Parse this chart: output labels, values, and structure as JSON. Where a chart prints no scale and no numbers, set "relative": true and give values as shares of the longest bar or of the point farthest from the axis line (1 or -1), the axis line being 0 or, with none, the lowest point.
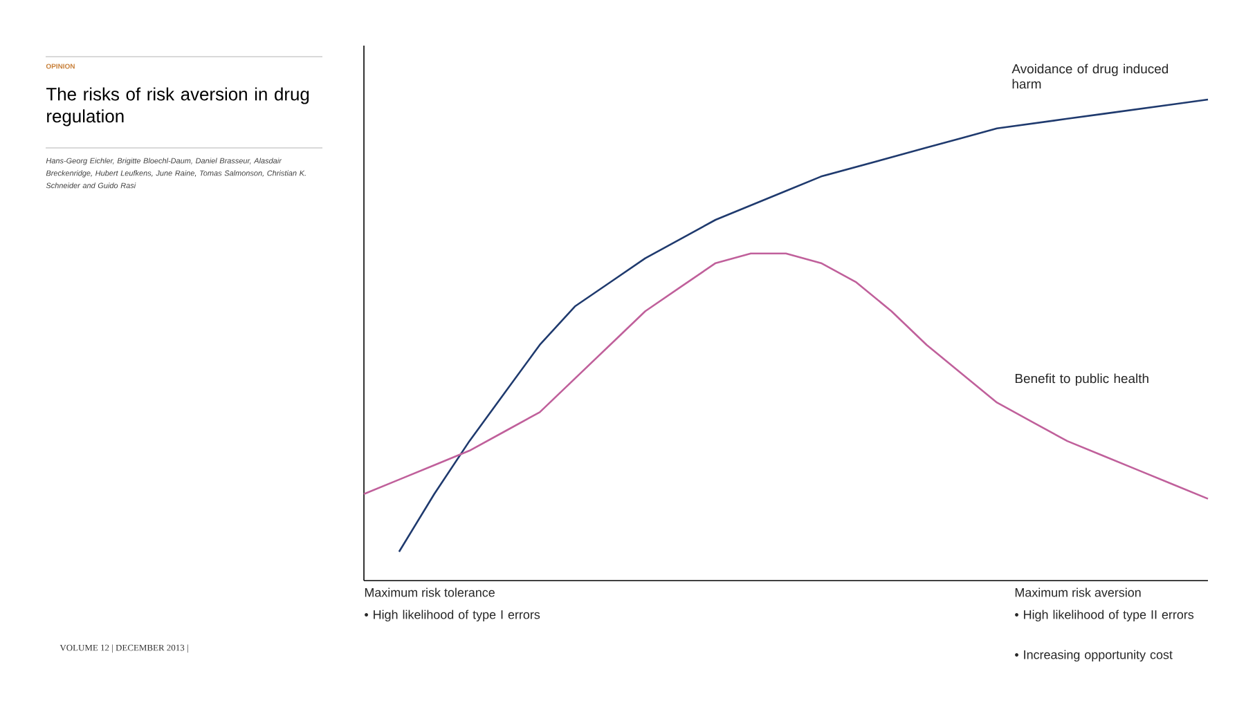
{
  "chart_data": {
    "type": "line",
    "relative": true,
    "title": "The risks of risk aversion in drug regulation",
    "subtitle": "Hans-Georg Eichler, Brigitte Bloechl-Daum, Daniel Brasseur, Alasdair Breckenridge, Hubert Leufkens, June Raine, Tomas Salmonson, Christian K. Schneider and Guido Rasi",
    "categories": [
      null,
      null,
      null,
      null,
      null,
      null,
      null,
      null,
      null,
      null,
      null,
      null,
      null,
      null,
      null,
      null,
      null,
      null,
      null,
      null,
      null,
      null,
      null,
      null,
      null
    ],
    "series": [
      {
        "name": "Avoidance of drug induced harm",
        "color": "#1f3a6e",
        "values": [
          null,
          0.06,
          0.18,
          0.29,
          0.39,
          0.49,
          0.57,
          0.62,
          0.67,
          0.71,
          0.75,
          0.78,
          0.81,
          0.84,
          0.86,
          0.88,
          0.9,
          0.92,
          0.94,
          0.95,
          0.96,
          0.97,
          0.98,
          0.99,
          1
        ]
      },
      {
        "name": "Benefit to public health",
        "color": "#c0609b",
        "values": [
          0.18,
          0.21,
          0.24,
          0.27,
          0.31,
          0.35,
          0.42,
          0.49,
          0.56,
          0.61,
          0.66,
          0.68,
          0.68,
          0.66,
          0.62,
          0.56,
          0.49,
          0.43,
          0.37,
          0.33,
          0.29,
          0.26,
          0.23,
          0.2,
          0.17
        ]
      }
    ],
    "annotations": [
      "OPINION",
      "Maximum risk tolerance",
      "• High likelihood of type I errors",
      "Maximum risk aversion",
      "• High likelihood of type II errors",
      "• Increasing opportunity cost",
      "VOLUME 12 | DECEMBER 2013 |"
    ]
  }
}
